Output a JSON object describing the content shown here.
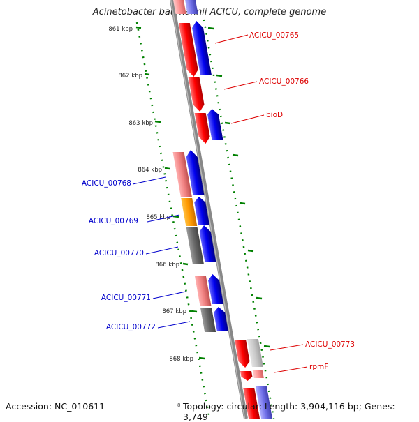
{
  "header": {
    "title": "Acinetobacter baumannii ACICU, complete genome"
  },
  "footer": {
    "accession": "Accession: NC_010611",
    "mark": "8",
    "summary": "Topology: circular; Length: 3,904,116 bp; Genes: 3,749"
  },
  "colors": {
    "forward_strand": "#ee0000",
    "reverse_strand": "#0000dd",
    "backbone": "#808080",
    "tick": "#008000",
    "right_label": "#dd0000",
    "left_label": "#0000cc"
  },
  "scale": {
    "ticks": [
      "861 kbp",
      "862 kbp",
      "863 kbp",
      "864 kbp",
      "865 kbp",
      "866 kbp",
      "867 kbp",
      "868 kbp"
    ]
  },
  "gene_labels": {
    "right": [
      "ACICU_00765",
      "ACICU_00766",
      "bioD",
      "ACICU_00773",
      "rpmF"
    ],
    "left": [
      "ACICU_00768",
      "ACICU_00769",
      "ACICU_00770",
      "ACICU_00771",
      "ACICU_00772"
    ]
  }
}
